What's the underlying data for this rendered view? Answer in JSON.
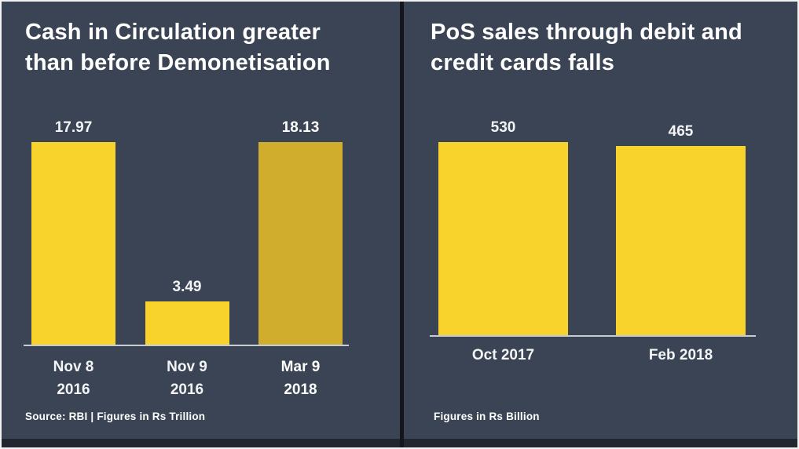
{
  "window": {
    "background": "#3b4454",
    "divider_color": "#14161c",
    "border_color": "#f2f2f2",
    "bottom_strip_color": "#22262f",
    "text_color": "#ffffff"
  },
  "chart_data": [
    {
      "type": "bar",
      "title_lines": [
        "Cash in Circulation greater",
        "than before Demonetisation"
      ],
      "categories": [
        [
          "Nov 8",
          "2016"
        ],
        [
          "Nov 9",
          "2016"
        ],
        [
          "Mar 9",
          "2018"
        ]
      ],
      "values": [
        17.97,
        3.49,
        18.13
      ],
      "value_labels": [
        "17.97",
        "3.49",
        "18.13"
      ],
      "bar_colors": [
        "#f8d32b",
        "#f8d32b",
        "#d1ad2e"
      ],
      "emphasis_index": 2,
      "ylim": [
        0,
        18.13
      ],
      "footer": "Source: RBI   |   Figures in Rs Trillion",
      "legend": "none",
      "grid": "off"
    },
    {
      "type": "bar",
      "title_lines": [
        "PoS sales through debit and",
        "credit cards falls"
      ],
      "categories": [
        [
          "Oct 2017"
        ],
        [
          "Feb 2018"
        ]
      ],
      "values": [
        530,
        465
      ],
      "value_labels": [
        "530",
        "465"
      ],
      "bar_colors": [
        "#f8d32b",
        "#f8d32b"
      ],
      "emphasis_index": -1,
      "ylim": [
        0,
        530
      ],
      "footer": "Figures in Rs Billion",
      "legend": "none",
      "grid": "off"
    }
  ]
}
